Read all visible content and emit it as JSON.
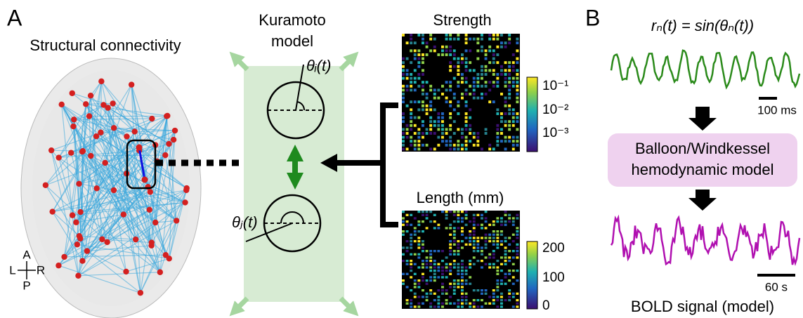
{
  "panel_a": {
    "label": "A",
    "structural_title": "Structural connectivity",
    "compass": {
      "anterior": "A",
      "left": "L",
      "right": "R",
      "posterior": "P"
    },
    "kuramoto": {
      "title_lines": [
        "Kuramoto",
        "model"
      ],
      "theta_i": "θᵢ(t)",
      "theta_j": "θⱼ(t)"
    },
    "strength": {
      "title": "Strength",
      "colorbar_ticks": [
        "10⁻¹",
        "10⁻²",
        "10⁻³"
      ]
    },
    "length": {
      "title": "Length (mm)",
      "colorbar_ticks": [
        "200",
        "100",
        "0"
      ]
    }
  },
  "panel_b": {
    "label": "B",
    "formula": "rₙ(t) = sin(θₙ(t))",
    "scale_fast": "100 ms",
    "hemodynamic_lines": [
      "Balloon/Windkessel",
      "hemodynamic model"
    ],
    "scale_slow": "60 s",
    "bold_title": "BOLD signal (model)"
  }
}
